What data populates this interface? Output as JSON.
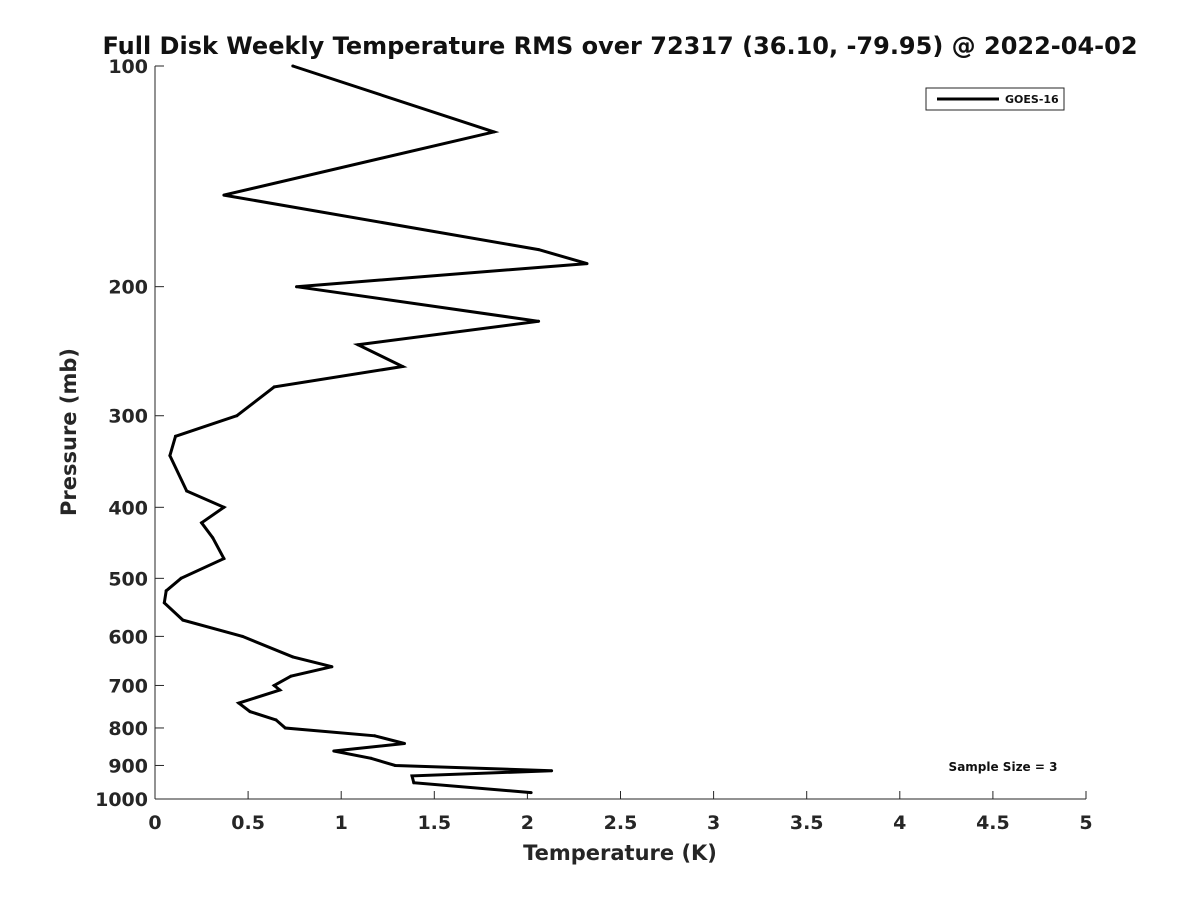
{
  "chart_data": {
    "type": "line",
    "title": "Full Disk Weekly Temperature RMS over 72317 (36.10, -79.95) @ 2022-04-02",
    "xlabel": "Temperature (K)",
    "ylabel": "Pressure (mb)",
    "xlim": [
      0,
      5
    ],
    "ylim": [
      100,
      1000
    ],
    "y_scale": "log",
    "y_reversed": true,
    "xticks": [
      0,
      0.5,
      1,
      1.5,
      2,
      2.5,
      3,
      3.5,
      4,
      4.5,
      5
    ],
    "xtick_labels": [
      "0",
      "0.5",
      "1",
      "1.5",
      "2",
      "2.5",
      "3",
      "3.5",
      "4",
      "4.5",
      "5"
    ],
    "yticks": [
      100,
      200,
      300,
      400,
      500,
      600,
      700,
      800,
      900,
      1000
    ],
    "ytick_labels": [
      "100",
      "200",
      "300",
      "400",
      "500",
      "600",
      "700",
      "800",
      "900",
      "1000"
    ],
    "grid": false,
    "legend_position": "top-right",
    "annotation": "Sample Size = 3",
    "series": [
      {
        "name": "GOES-16",
        "color": "#000000",
        "x": [
          0.74,
          1.82,
          0.37,
          2.06,
          2.32,
          0.76,
          2.06,
          1.09,
          1.33,
          0.64,
          0.44,
          0.11,
          0.08,
          0.17,
          0.37,
          0.25,
          0.31,
          0.37,
          0.14,
          0.06,
          0.05,
          0.15,
          0.47,
          0.74,
          0.95,
          0.73,
          0.64,
          0.67,
          0.45,
          0.51,
          0.65,
          0.7,
          1.18,
          1.34,
          0.96,
          1.16,
          1.29,
          2.13,
          1.38,
          1.39,
          2.02
        ],
        "y": [
          100,
          123,
          150,
          178,
          186,
          200,
          223,
          240,
          257,
          274,
          300,
          320,
          340,
          380,
          400,
          420,
          440,
          470,
          500,
          520,
          540,
          570,
          600,
          640,
          660,
          680,
          700,
          710,
          740,
          760,
          780,
          800,
          820,
          840,
          860,
          880,
          900,
          915,
          930,
          950,
          980
        ]
      }
    ]
  }
}
